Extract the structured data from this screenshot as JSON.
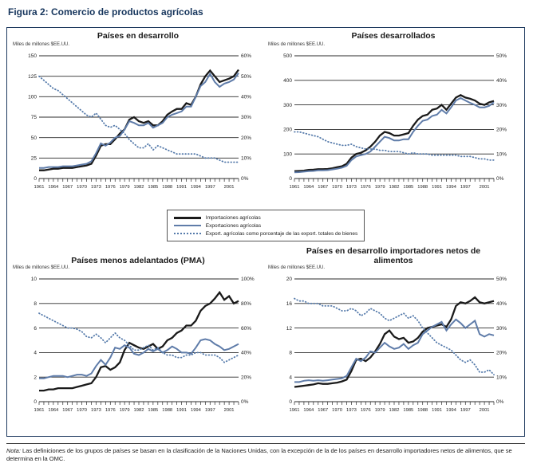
{
  "figure": {
    "title": "Figura 2: Comercio de productos agrícolas"
  },
  "legend": {
    "items": [
      {
        "label": "Importaciones agrícolas",
        "style": "solid-black"
      },
      {
        "label": "Exportaciones agrícolas",
        "style": "solid-blue"
      },
      {
        "label": "Export. agrícolas como porcentaje de las export. totales de bienes",
        "style": "dotted-blue"
      }
    ]
  },
  "note": {
    "label": "Nota:",
    "text": " Las definiciones de los grupos de países se basan en la clasificación de la Naciones Unidas, con la excepción de la de los países en desarrollo importadores netos de alimentos, que se determina en la OMC."
  },
  "colors": {
    "imports": "#1a1a1a",
    "exports": "#5f7ca9",
    "pct": "#567bab",
    "title": "#17365d",
    "border": "#1f3a5f",
    "grid": "#2b2b2b"
  },
  "chart_data": [
    {
      "type": "line",
      "title": "Países en desarrollo",
      "unit_label": "Miles de millones $EE.UU.",
      "x_start": 1961,
      "x_end": 2003,
      "x_tick_labels": [
        1961,
        1964,
        1967,
        1970,
        1973,
        1976,
        1979,
        1982,
        1985,
        1988,
        1991,
        1994,
        1997,
        2001
      ],
      "left_axis": {
        "min": 0,
        "max": 150,
        "ticks": [
          0,
          25,
          50,
          75,
          100,
          125,
          150
        ]
      },
      "right_axis": {
        "min": 0,
        "max": 60,
        "ticks": [
          0,
          10,
          20,
          30,
          40,
          50,
          60
        ],
        "suffix": "%"
      },
      "series": [
        {
          "name": "Importaciones agrícolas",
          "role": "imports",
          "axis": "left",
          "values": [
            10,
            10,
            11,
            12,
            12,
            13,
            13,
            13,
            14,
            15,
            16,
            18,
            28,
            40,
            42,
            42,
            48,
            55,
            60,
            72,
            75,
            70,
            68,
            70,
            65,
            65,
            70,
            78,
            82,
            85,
            85,
            92,
            90,
            100,
            115,
            125,
            132,
            125,
            118,
            120,
            122,
            125,
            133
          ]
        },
        {
          "name": "Exportaciones agrícolas",
          "role": "exports",
          "axis": "left",
          "values": [
            13,
            13,
            14,
            14,
            14,
            15,
            15,
            15,
            16,
            17,
            18,
            21,
            31,
            43,
            40,
            44,
            50,
            52,
            60,
            70,
            68,
            65,
            65,
            68,
            62,
            65,
            68,
            75,
            78,
            80,
            82,
            88,
            88,
            100,
            113,
            118,
            128,
            118,
            112,
            116,
            118,
            121,
            129
          ]
        },
        {
          "name": "Export. agrícolas como porcentaje de las export. totales de bienes",
          "role": "pct",
          "axis": "right",
          "values": [
            50,
            48,
            46,
            44,
            43,
            41,
            39,
            37,
            35,
            33,
            31,
            30,
            32,
            29,
            26,
            25,
            26,
            24,
            22,
            19,
            17,
            15,
            15,
            17,
            14,
            16,
            15,
            14,
            13,
            12,
            12,
            12,
            12,
            12,
            11,
            10,
            10,
            10,
            9,
            8,
            8,
            8,
            8
          ]
        }
      ]
    },
    {
      "type": "line",
      "title": "Países desarrollados",
      "unit_label": "Miles de millones $EE.UU.",
      "x_start": 1961,
      "x_end": 2003,
      "x_tick_labels": [
        1961,
        1964,
        1967,
        1970,
        1973,
        1976,
        1979,
        1982,
        1985,
        1988,
        1991,
        1994,
        1997,
        2001
      ],
      "left_axis": {
        "min": 0,
        "max": 500,
        "ticks": [
          0,
          100,
          200,
          300,
          400,
          500
        ]
      },
      "right_axis": {
        "min": 0,
        "max": 50,
        "ticks": [
          0,
          10,
          20,
          30,
          40,
          50
        ],
        "suffix": "%"
      },
      "series": [
        {
          "name": "Importaciones agrícolas",
          "role": "imports",
          "axis": "left",
          "values": [
            30,
            31,
            32,
            35,
            36,
            38,
            38,
            39,
            42,
            46,
            50,
            60,
            85,
            100,
            105,
            115,
            130,
            150,
            175,
            190,
            185,
            175,
            175,
            180,
            185,
            215,
            240,
            255,
            260,
            280,
            285,
            300,
            280,
            305,
            330,
            340,
            330,
            325,
            318,
            305,
            300,
            310,
            316
          ]
        },
        {
          "name": "Exportaciones agrícolas",
          "role": "exports",
          "axis": "left",
          "values": [
            25,
            26,
            28,
            30,
            31,
            33,
            33,
            34,
            37,
            40,
            44,
            52,
            75,
            90,
            95,
            100,
            110,
            130,
            150,
            170,
            165,
            155,
            155,
            160,
            160,
            190,
            215,
            235,
            240,
            255,
            260,
            280,
            265,
            290,
            318,
            328,
            318,
            308,
            300,
            290,
            290,
            296,
            310
          ]
        },
        {
          "name": "Export. agrícolas como porcentaje de las export. totales de bienes",
          "role": "pct",
          "axis": "right",
          "values": [
            19,
            19,
            18.5,
            18,
            17.5,
            17,
            16,
            15,
            14.5,
            14,
            13.5,
            13.5,
            14,
            13,
            12.5,
            12,
            12,
            12,
            11.5,
            11.5,
            11,
            11,
            11,
            10.5,
            10,
            10.5,
            10,
            10,
            10,
            9.5,
            9.5,
            9.5,
            9.5,
            9.5,
            9.5,
            9,
            9,
            9,
            8.5,
            8,
            8,
            7.5,
            7.5
          ]
        }
      ]
    },
    {
      "type": "line",
      "title": "Países menos adelantados (PMA)",
      "unit_label": "Miles de millones $EE.UU.",
      "x_start": 1961,
      "x_end": 2003,
      "x_tick_labels": [
        1961,
        1964,
        1967,
        1970,
        1973,
        1976,
        1979,
        1982,
        1985,
        1988,
        1991,
        1994,
        1997,
        2001
      ],
      "left_axis": {
        "min": 0,
        "max": 10,
        "ticks": [
          0,
          2,
          4,
          6,
          8,
          10
        ]
      },
      "right_axis": {
        "min": 0,
        "max": 100,
        "ticks": [
          0,
          20,
          40,
          60,
          80,
          100
        ],
        "suffix": "%"
      },
      "series": [
        {
          "name": "Importaciones agrícolas",
          "role": "imports",
          "axis": "left",
          "values": [
            0.9,
            0.9,
            1.0,
            1.0,
            1.1,
            1.1,
            1.1,
            1.1,
            1.2,
            1.3,
            1.4,
            1.5,
            2.0,
            2.8,
            2.9,
            2.6,
            2.8,
            3.2,
            4.2,
            4.8,
            4.6,
            4.4,
            4.3,
            4.5,
            4.7,
            4.3,
            4.5,
            5.0,
            5.2,
            5.6,
            5.8,
            6.2,
            6.2,
            6.6,
            7.4,
            7.8,
            8.0,
            8.4,
            8.9,
            8.3,
            8.6,
            8.0,
            8.2
          ]
        },
        {
          "name": "Exportaciones agrícolas",
          "role": "exports",
          "axis": "left",
          "values": [
            1.9,
            1.9,
            2.0,
            2.1,
            2.1,
            2.1,
            2.0,
            2.1,
            2.2,
            2.2,
            2.1,
            2.3,
            2.9,
            3.4,
            3.0,
            3.6,
            4.4,
            4.3,
            4.6,
            4.4,
            3.9,
            3.8,
            4.0,
            4.3,
            4.1,
            4.3,
            4.0,
            4.2,
            4.5,
            4.3,
            4.0,
            4.0,
            3.9,
            4.4,
            5.0,
            5.1,
            5.0,
            4.7,
            4.5,
            4.2,
            4.3,
            4.5,
            4.7
          ]
        },
        {
          "name": "Export. agrícolas como porcentaje de las export. totales de bienes",
          "role": "pct",
          "axis": "right",
          "values": [
            72,
            70,
            68,
            66,
            64,
            62,
            60,
            60,
            59,
            57,
            53,
            52,
            55,
            52,
            48,
            52,
            56,
            52,
            50,
            46,
            42,
            42,
            44,
            46,
            42,
            44,
            40,
            38,
            38,
            36,
            36,
            38,
            38,
            40,
            40,
            38,
            38,
            38,
            36,
            32,
            34,
            36,
            38
          ]
        }
      ]
    },
    {
      "type": "line",
      "title": "Países en desarrollo importadores netos de alimentos",
      "unit_label": "Miles de millones $EE.UU.",
      "x_start": 1961,
      "x_end": 2003,
      "x_tick_labels": [
        1961,
        1964,
        1967,
        1970,
        1973,
        1976,
        1979,
        1982,
        1985,
        1988,
        1991,
        1994,
        1997,
        2001
      ],
      "left_axis": {
        "min": 0,
        "max": 20,
        "ticks": [
          0,
          4,
          8,
          12,
          16,
          20
        ]
      },
      "right_axis": {
        "min": 0,
        "max": 50,
        "ticks": [
          0,
          10,
          20,
          30,
          40,
          50
        ],
        "suffix": "%"
      },
      "series": [
        {
          "name": "Importaciones agrícolas",
          "role": "imports",
          "axis": "left",
          "values": [
            2.4,
            2.5,
            2.6,
            2.7,
            2.8,
            3.0,
            2.9,
            2.9,
            3.0,
            3.1,
            3.3,
            3.6,
            5.0,
            6.8,
            7.0,
            6.6,
            7.2,
            8.2,
            9.4,
            11.0,
            11.6,
            10.6,
            10.2,
            10.4,
            9.6,
            9.8,
            10.4,
            11.4,
            12.0,
            12.2,
            12.4,
            12.6,
            12.2,
            13.4,
            15.6,
            16.2,
            16.0,
            16.4,
            17.0,
            16.2,
            16.0,
            16.2,
            16.4
          ]
        },
        {
          "name": "Exportaciones agrícolas",
          "role": "exports",
          "axis": "left",
          "values": [
            3.2,
            3.2,
            3.4,
            3.5,
            3.4,
            3.5,
            3.4,
            3.5,
            3.6,
            3.7,
            3.8,
            4.2,
            5.6,
            7.0,
            6.6,
            7.2,
            8.2,
            8.0,
            8.8,
            9.6,
            9.0,
            8.6,
            8.8,
            9.4,
            8.6,
            9.2,
            9.6,
            11.0,
            11.6,
            12.2,
            12.6,
            13.0,
            11.6,
            12.6,
            13.4,
            12.8,
            12.0,
            12.6,
            13.2,
            11.0,
            10.6,
            11.0,
            10.8
          ]
        },
        {
          "name": "Export. agrícolas como porcentaje de las export. totales de bienes",
          "role": "pct",
          "axis": "right",
          "values": [
            42,
            41,
            41,
            40,
            40,
            40,
            39,
            39,
            39,
            38,
            37,
            37,
            38,
            37,
            35,
            36,
            38,
            37,
            36,
            34,
            33,
            34,
            35,
            36,
            34,
            35,
            33,
            30,
            28,
            26,
            24,
            23,
            22,
            21,
            19,
            17,
            16,
            17,
            15,
            12,
            12,
            13,
            11
          ]
        }
      ]
    }
  ]
}
